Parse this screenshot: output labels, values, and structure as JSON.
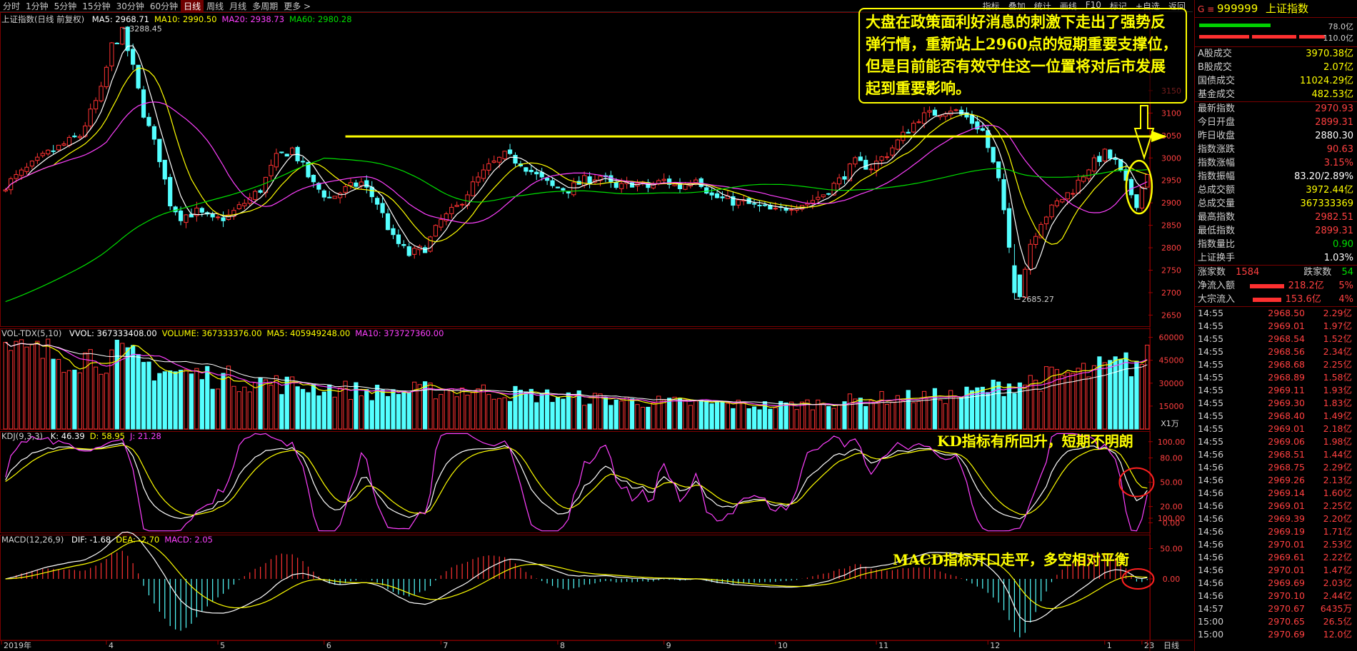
{
  "toolbar": {
    "periods": [
      "分时",
      "1分钟",
      "5分钟",
      "15分钟",
      "30分钟",
      "60分钟",
      "日线",
      "周线",
      "月线",
      "多周期",
      "更多 >"
    ],
    "active_period": "日线",
    "right_tools": [
      "指标",
      "叠加",
      "统计",
      "画线",
      "F10",
      "标记",
      "+自选",
      "返回"
    ]
  },
  "main_chart": {
    "title": "上证指数(日线 前复权)",
    "ma_items": [
      {
        "label": "MA5: 2968.71",
        "color": "#ffffff"
      },
      {
        "label": "MA10: 2990.50",
        "color": "#ffff00"
      },
      {
        "label": "MA20: 2938.73",
        "color": "#ff40ff"
      },
      {
        "label": "MA60: 2980.28",
        "color": "#00e000"
      }
    ],
    "high_label": "3288.45",
    "low_label": "2685.27",
    "price_axis": [
      "3150",
      "3100",
      "3050",
      "3000",
      "2950",
      "2900",
      "2850",
      "2800",
      "2750",
      "2700",
      "2650"
    ],
    "support_level": 3048
  },
  "vol_chart": {
    "title": "VOL-TDX(5,10)",
    "items": [
      {
        "label": "VVOL: 367333408.00",
        "color": "#ffffff"
      },
      {
        "label": "VOLUME: 367333376.00",
        "color": "#ffff00"
      },
      {
        "label": "MA5: 405949248.00",
        "color": "#ffff00"
      },
      {
        "label": "MA10: 373727360.00",
        "color": "#ff40ff"
      }
    ],
    "axis": [
      "60000",
      "45000",
      "30000",
      "15000"
    ],
    "unit": "X1万"
  },
  "kdj_chart": {
    "title": "KDJ(9,3,3)",
    "items": [
      {
        "label": "K: 46.39",
        "color": "#ffffff"
      },
      {
        "label": "D: 58.95",
        "color": "#ffff00"
      },
      {
        "label": "J: 21.28",
        "color": "#ff40ff"
      }
    ],
    "axis": [
      "100.00",
      "80.00",
      "50.00",
      "20.00",
      "0.00"
    ]
  },
  "macd_chart": {
    "title": "MACD(12,26,9)",
    "items": [
      {
        "label": "DIF: -1.68",
        "color": "#ffffff"
      },
      {
        "label": "DEA: -2.70",
        "color": "#ffff00"
      },
      {
        "label": "MACD: 2.05",
        "color": "#ff40ff"
      }
    ],
    "axis": [
      "100.00",
      "50.00",
      "0.00"
    ]
  },
  "date_axis": {
    "labels": [
      "2019年",
      "4",
      "5",
      "6",
      "7",
      "8",
      "9",
      "10",
      "11",
      "12",
      "1",
      "2",
      "3"
    ],
    "period_label": "日线"
  },
  "annotations": {
    "main_text": "大盘在政策面利好消息的刺激下走出了强势反弹行情，重新站上2960点的短期重要支撑位，但是目前能否有效守住这一位置将对后市发展起到重要影响。",
    "kd_text": "KD指标有所回升，短期不明朗",
    "macd_text": "MACD指标开口走平，多空相对平衡"
  },
  "panel": {
    "code": "999999",
    "name": "上证指数",
    "bar1_value": "78.0亿",
    "bar2_value": "110.0亿",
    "trade_rows": [
      {
        "label": "A股成交",
        "value": "3970.38亿",
        "color": "#ffff00"
      },
      {
        "label": "B股成交",
        "value": "2.07亿",
        "color": "#ffff00"
      },
      {
        "label": "国债成交",
        "value": "11024.29亿",
        "color": "#ffff00"
      },
      {
        "label": "基金成交",
        "value": "482.53亿",
        "color": "#ffff00"
      }
    ],
    "index_rows": [
      {
        "label": "最新指数",
        "value": "2970.93",
        "color": "#ff4040"
      },
      {
        "label": "今日开盘",
        "value": "2899.31",
        "color": "#ff4040"
      },
      {
        "label": "昨日收盘",
        "value": "2880.30",
        "color": "#ffffff"
      },
      {
        "label": "指数涨跌",
        "value": "90.63",
        "color": "#ff4040"
      },
      {
        "label": "指数涨幅",
        "value": "3.15%",
        "color": "#ff4040"
      },
      {
        "label": "指数振幅",
        "value": "83.20/2.89%",
        "color": "#ffffff"
      },
      {
        "label": "总成交额",
        "value": "3972.44亿",
        "color": "#ffff00"
      },
      {
        "label": "总成交量",
        "value": "367333369",
        "color": "#ffff00"
      },
      {
        "label": "最高指数",
        "value": "2982.51",
        "color": "#ff4040"
      },
      {
        "label": "最低指数",
        "value": "2899.31",
        "color": "#ff4040"
      },
      {
        "label": "指数量比",
        "value": "0.90",
        "color": "#00e000"
      },
      {
        "label": "上证换手",
        "value": "1.03%",
        "color": "#ffffff"
      }
    ],
    "rise_label": "涨家数",
    "rise_value": "1584",
    "fall_label": "跌家数",
    "fall_value": "54",
    "inflow_rows": [
      {
        "label": "净流入额",
        "value": "218.2亿",
        "pct": "5%"
      },
      {
        "label": "大宗流入",
        "value": "153.6亿",
        "pct": "4%"
      }
    ],
    "ticks": [
      {
        "time": "14:55",
        "price": "2968.50",
        "vol": "2.29亿"
      },
      {
        "time": "14:55",
        "price": "2969.01",
        "vol": "1.97亿"
      },
      {
        "time": "14:55",
        "price": "2968.54",
        "vol": "1.52亿"
      },
      {
        "time": "14:55",
        "price": "2968.56",
        "vol": "2.34亿"
      },
      {
        "time": "14:55",
        "price": "2968.68",
        "vol": "2.25亿"
      },
      {
        "time": "14:55",
        "price": "2968.89",
        "vol": "1.58亿"
      },
      {
        "time": "14:55",
        "price": "2969.11",
        "vol": "1.93亿"
      },
      {
        "time": "14:55",
        "price": "2969.30",
        "vol": "1.83亿"
      },
      {
        "time": "14:55",
        "price": "2968.40",
        "vol": "1.49亿"
      },
      {
        "time": "14:55",
        "price": "2969.01",
        "vol": "2.18亿"
      },
      {
        "time": "14:55",
        "price": "2969.06",
        "vol": "1.98亿"
      },
      {
        "time": "14:56",
        "price": "2968.51",
        "vol": "1.44亿"
      },
      {
        "time": "14:56",
        "price": "2968.75",
        "vol": "2.29亿"
      },
      {
        "time": "14:56",
        "price": "2969.26",
        "vol": "2.13亿"
      },
      {
        "time": "14:56",
        "price": "2969.14",
        "vol": "1.60亿"
      },
      {
        "time": "14:56",
        "price": "2969.01",
        "vol": "2.25亿"
      },
      {
        "time": "14:56",
        "price": "2969.39",
        "vol": "2.20亿"
      },
      {
        "time": "14:56",
        "price": "2969.19",
        "vol": "1.71亿"
      },
      {
        "time": "14:56",
        "price": "2970.01",
        "vol": "2.53亿"
      },
      {
        "time": "14:56",
        "price": "2969.61",
        "vol": "2.22亿"
      },
      {
        "time": "14:56",
        "price": "2970.01",
        "vol": "1.47亿"
      },
      {
        "time": "14:56",
        "price": "2969.69",
        "vol": "2.03亿"
      },
      {
        "time": "14:56",
        "price": "2970.10",
        "vol": "2.44亿"
      },
      {
        "time": "14:57",
        "price": "2970.67",
        "vol": "6435万"
      },
      {
        "time": "15:00",
        "price": "2970.65",
        "vol": "26.5亿"
      },
      {
        "time": "15:00",
        "price": "2970.69",
        "vol": "12.0亿"
      }
    ]
  },
  "chart_data": {
    "type": "candlestick",
    "trend": [
      [
        0,
        2940
      ],
      [
        8,
        3010
      ],
      [
        14,
        3050
      ],
      [
        18,
        3150
      ],
      [
        20,
        3250
      ],
      [
        22,
        3280
      ],
      [
        24,
        3200
      ],
      [
        26,
        3100
      ],
      [
        29,
        3000
      ],
      [
        31,
        2900
      ],
      [
        33,
        2870
      ],
      [
        36,
        2880
      ],
      [
        39,
        2860
      ],
      [
        42,
        2870
      ],
      [
        45,
        2900
      ],
      [
        48,
        2930
      ],
      [
        51,
        3000
      ],
      [
        54,
        3020
      ],
      [
        56,
        2980
      ],
      [
        58,
        2940
      ],
      [
        61,
        2910
      ],
      [
        64,
        2930
      ],
      [
        67,
        2945
      ],
      [
        70,
        2900
      ],
      [
        73,
        2820
      ],
      [
        76,
        2785
      ],
      [
        79,
        2800
      ],
      [
        82,
        2860
      ],
      [
        85,
        2890
      ],
      [
        88,
        2940
      ],
      [
        91,
        2980
      ],
      [
        94,
        3005
      ],
      [
        97,
        2990
      ],
      [
        100,
        2960
      ],
      [
        103,
        2935
      ],
      [
        106,
        2930
      ],
      [
        109,
        2950
      ],
      [
        112,
        2960
      ],
      [
        115,
        2930
      ],
      [
        118,
        2945
      ],
      [
        121,
        2935
      ],
      [
        124,
        2950
      ],
      [
        127,
        2935
      ],
      [
        130,
        2960
      ],
      [
        133,
        2915
      ],
      [
        136,
        2905
      ],
      [
        139,
        2900
      ],
      [
        142,
        2890
      ],
      [
        145,
        2880
      ],
      [
        148,
        2895
      ],
      [
        151,
        2900
      ],
      [
        154,
        2920
      ],
      [
        157,
        2950
      ],
      [
        160,
        2990
      ],
      [
        163,
        2980
      ],
      [
        166,
        3010
      ],
      [
        169,
        3050
      ],
      [
        172,
        3090
      ],
      [
        175,
        3100
      ],
      [
        178,
        3110
      ],
      [
        181,
        3090
      ],
      [
        184,
        3060
      ],
      [
        187,
        2950
      ],
      [
        189,
        2800
      ],
      [
        191,
        2700
      ],
      [
        193,
        2810
      ],
      [
        195,
        2860
      ],
      [
        198,
        2900
      ],
      [
        201,
        2930
      ],
      [
        204,
        2980
      ],
      [
        207,
        3010
      ],
      [
        209,
        2990
      ],
      [
        211,
        2940
      ],
      [
        213,
        2900
      ],
      [
        215,
        2970
      ]
    ],
    "volume_trend": [
      [
        0,
        50000
      ],
      [
        22,
        47000
      ],
      [
        30,
        38000
      ],
      [
        50,
        30000
      ],
      [
        70,
        24000
      ],
      [
        85,
        26000
      ],
      [
        100,
        22000
      ],
      [
        120,
        18000
      ],
      [
        145,
        15000
      ],
      [
        165,
        20000
      ],
      [
        180,
        22000
      ],
      [
        190,
        30000
      ],
      [
        205,
        38000
      ],
      [
        215,
        45000
      ]
    ]
  }
}
